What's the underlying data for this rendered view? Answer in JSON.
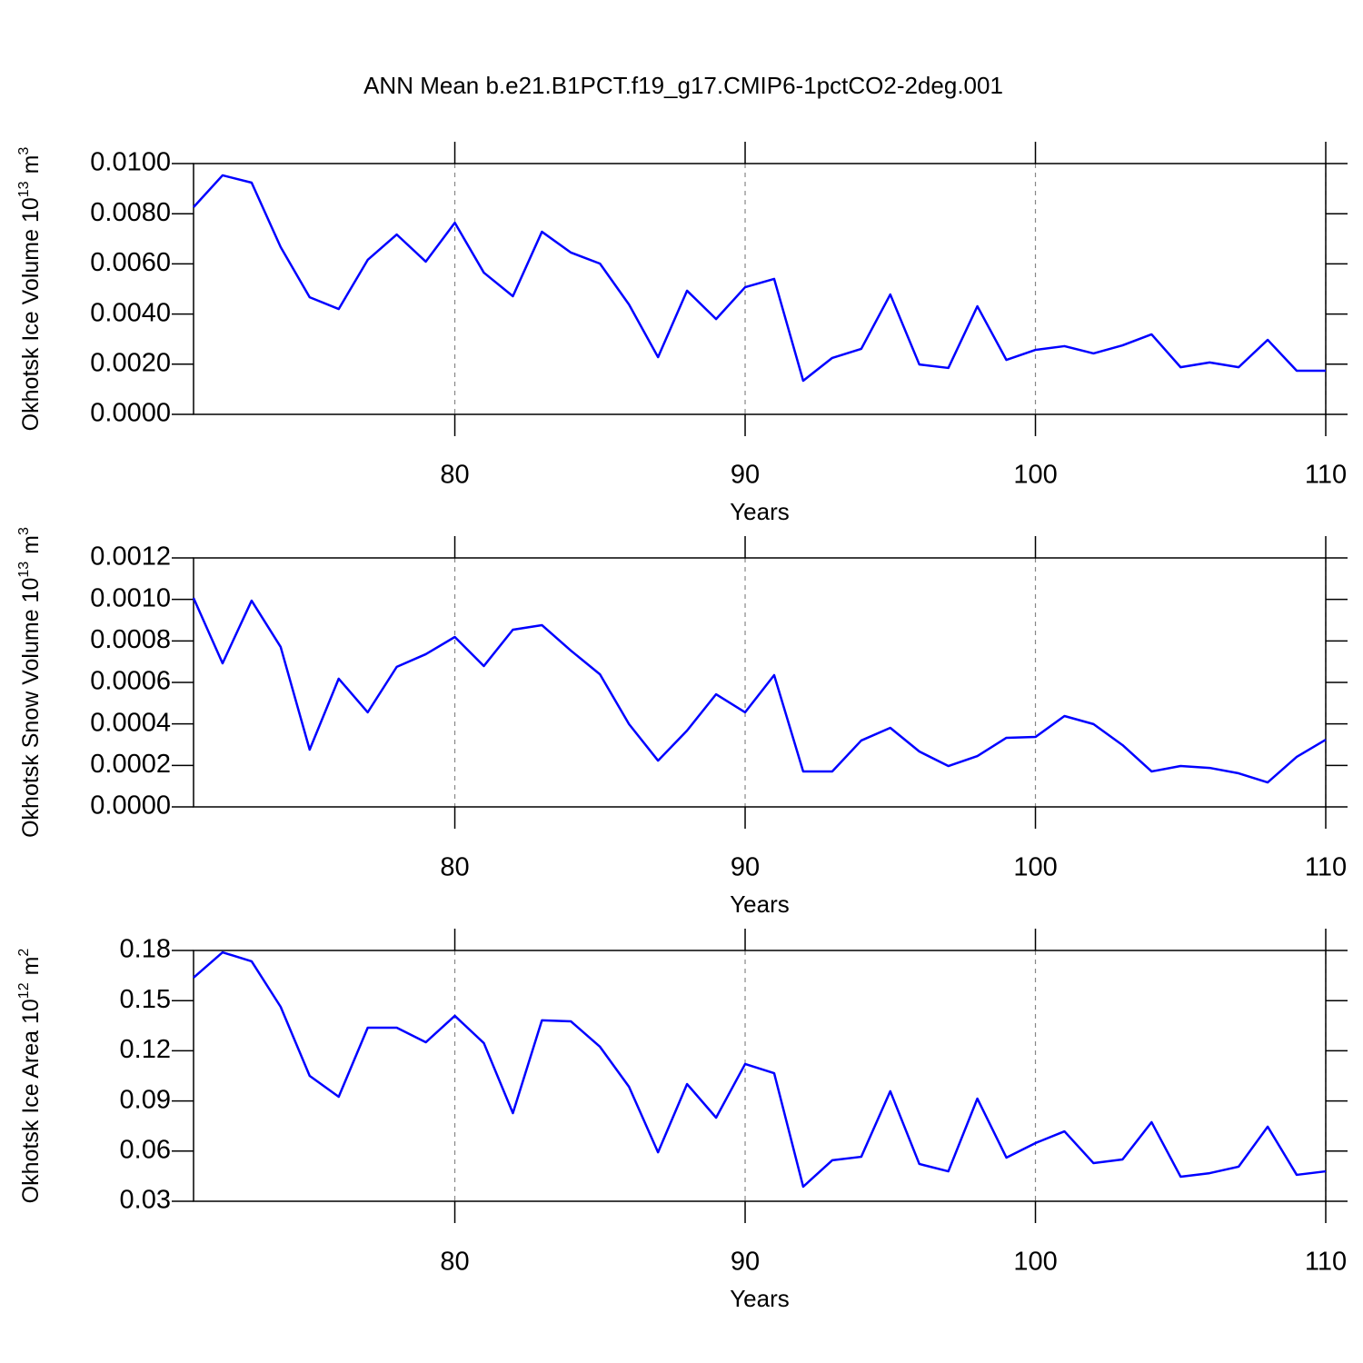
{
  "title": "ANN Mean b.e21.B1PCT.f19_g17.CMIP6-1pctCO2-2deg.001",
  "chart_data": [
    {
      "type": "line",
      "ylabel": [
        "Okhotsk Ice Volume 10",
        "13",
        "m",
        "3"
      ],
      "xlabel": "Years",
      "x": [
        71,
        72,
        73,
        74,
        75,
        76,
        77,
        78,
        79,
        80,
        81,
        82,
        83,
        84,
        85,
        86,
        87,
        88,
        89,
        90,
        91,
        92,
        93,
        94,
        95,
        96,
        97,
        98,
        99,
        100,
        101,
        102,
        103,
        104,
        105,
        106,
        107,
        108,
        109,
        110
      ],
      "values": [
        0.00826,
        0.00953,
        0.00924,
        0.00667,
        0.00467,
        0.0042,
        0.00616,
        0.00717,
        0.00609,
        0.00764,
        0.00565,
        0.00471,
        0.00728,
        0.00645,
        0.00601,
        0.00438,
        0.00228,
        0.00493,
        0.0038,
        0.00507,
        0.0054,
        0.00134,
        0.00225,
        0.00261,
        0.00478,
        0.00199,
        0.00185,
        0.00431,
        0.00217,
        0.00257,
        0.00272,
        0.00243,
        0.00275,
        0.00319,
        0.00188,
        0.00207,
        0.00188,
        0.00297,
        0.00174,
        0.00174
      ],
      "color": "#0000ff",
      "xlim": [
        71,
        110
      ],
      "xticks": [
        80,
        90,
        100,
        110
      ],
      "xgrid": true,
      "ylim": [
        0,
        0.01
      ],
      "yticks": [
        {
          "value": 0,
          "label": "0.0000"
        },
        {
          "value": 0.002,
          "label": "0.0020"
        },
        {
          "value": 0.004,
          "label": "0.0040"
        },
        {
          "value": 0.006,
          "label": "0.0060"
        },
        {
          "value": 0.008,
          "label": "0.0080"
        },
        {
          "value": 0.01,
          "label": "0.0100"
        }
      ]
    },
    {
      "type": "line",
      "ylabel": [
        "Okhotsk Snow Volume 10",
        "13",
        "m",
        "3"
      ],
      "xlabel": "Years",
      "x": [
        71,
        72,
        73,
        74,
        75,
        76,
        77,
        78,
        79,
        80,
        81,
        82,
        83,
        84,
        85,
        86,
        87,
        88,
        89,
        90,
        91,
        92,
        93,
        94,
        95,
        96,
        97,
        98,
        99,
        100,
        101,
        102,
        103,
        104,
        105,
        106,
        107,
        108,
        109,
        110
      ],
      "values": [
        0.001007,
        0.000692,
        0.000994,
        0.000771,
        0.000276,
        0.000618,
        0.000456,
        0.000675,
        0.000736,
        0.000819,
        0.000679,
        0.000854,
        0.000876,
        0.000753,
        0.000639,
        0.000399,
        0.000223,
        0.000368,
        0.000543,
        0.000456,
        0.000635,
        0.000171,
        0.000171,
        0.00032,
        0.000381,
        0.000267,
        0.000197,
        0.000245,
        0.000333,
        0.000337,
        0.000438,
        0.000399,
        0.000298,
        0.000171,
        0.000197,
        0.000188,
        0.000162,
        0.000118,
        0.000241,
        0.000324
      ],
      "color": "#0000ff",
      "xlim": [
        71,
        110
      ],
      "xticks": [
        80,
        90,
        100,
        110
      ],
      "xgrid": true,
      "ylim": [
        0,
        0.0012
      ],
      "yticks": [
        {
          "value": 0,
          "label": "0.0000"
        },
        {
          "value": 0.0002,
          "label": "0.0002"
        },
        {
          "value": 0.0004,
          "label": "0.0004"
        },
        {
          "value": 0.0006,
          "label": "0.0006"
        },
        {
          "value": 0.0008,
          "label": "0.0008"
        },
        {
          "value": 0.001,
          "label": "0.0010"
        },
        {
          "value": 0.0012,
          "label": "0.0012"
        }
      ]
    },
    {
      "type": "line",
      "ylabel": [
        "Okhotsk Ice Area 10",
        "12",
        "m",
        "2"
      ],
      "xlabel": "Years",
      "x": [
        71,
        72,
        73,
        74,
        75,
        76,
        77,
        78,
        79,
        80,
        81,
        82,
        83,
        84,
        85,
        86,
        87,
        88,
        89,
        90,
        91,
        92,
        93,
        94,
        95,
        96,
        97,
        98,
        99,
        100,
        101,
        102,
        103,
        104,
        105,
        106,
        107,
        108,
        109,
        110
      ],
      "values": [
        0.1637,
        0.1789,
        0.1735,
        0.1463,
        0.105,
        0.0925,
        0.1338,
        0.1338,
        0.1251,
        0.1409,
        0.1246,
        0.0827,
        0.1382,
        0.1376,
        0.1224,
        0.0985,
        0.0593,
        0.1001,
        0.08,
        0.1121,
        0.1066,
        0.0387,
        0.0545,
        0.0566,
        0.0958,
        0.0523,
        0.0479,
        0.0914,
        0.0561,
        0.0648,
        0.0718,
        0.0528,
        0.055,
        0.0773,
        0.0447,
        0.0468,
        0.0507,
        0.0746,
        0.0458,
        0.0479
      ],
      "color": "#0000ff",
      "xlim": [
        71,
        110
      ],
      "xticks": [
        80,
        90,
        100,
        110
      ],
      "xgrid": true,
      "ylim": [
        0.03,
        0.18
      ],
      "yticks": [
        0.03,
        0.06,
        0.09,
        0.12,
        0.15,
        0.18
      ]
    }
  ]
}
